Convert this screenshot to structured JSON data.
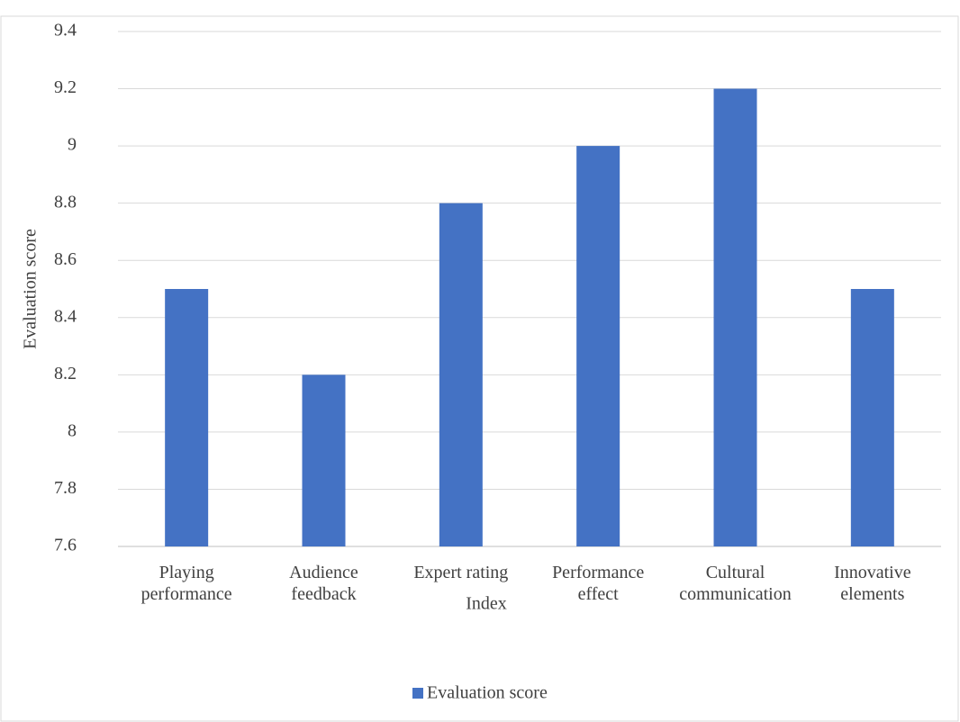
{
  "chart_data": {
    "type": "bar",
    "categories": [
      "Playing performance",
      "Audience feedback",
      "Expert rating",
      "Performance effect",
      "Cultural communication",
      "Innovative elements"
    ],
    "series": [
      {
        "name": "Evaluation score",
        "color": "#4472c4",
        "values": [
          8.5,
          8.2,
          8.8,
          9.0,
          9.2,
          8.5
        ]
      }
    ],
    "x_label": "Index",
    "y_label": "Evaluation score",
    "ylim": [
      7.6,
      9.4
    ],
    "yticks": [
      7.6,
      7.8,
      8,
      8.2,
      8.4,
      8.6,
      8.8,
      9,
      9.2,
      9.4
    ],
    "grid": true,
    "legend": "bottom"
  }
}
